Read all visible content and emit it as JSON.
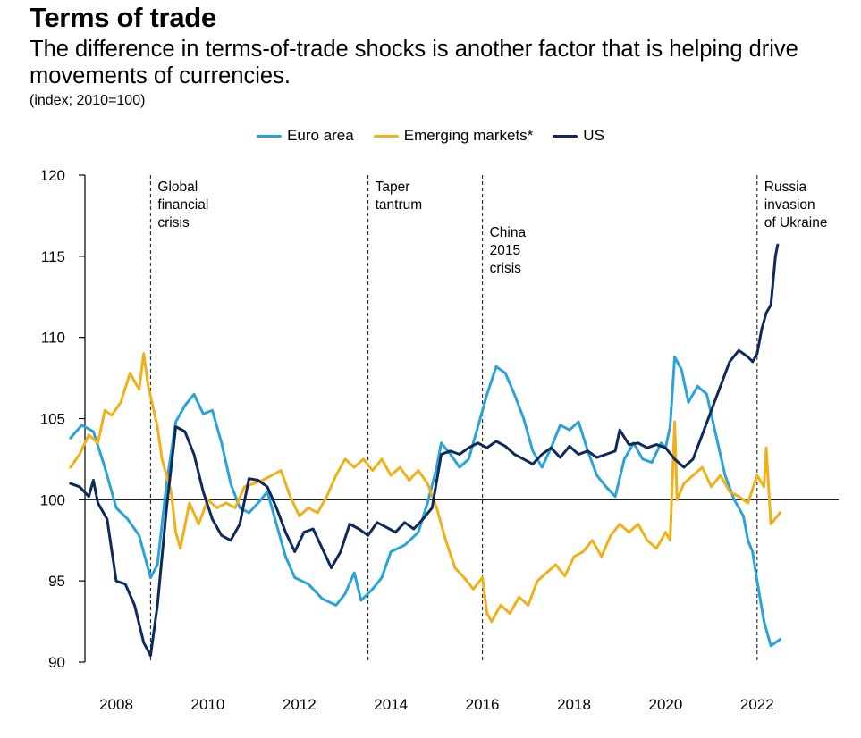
{
  "header": {
    "title": "Terms of trade",
    "subtitle": "The difference in terms-of-trade shocks is another factor that is helping drive movements of currencies.",
    "units": "(index; 2010=100)"
  },
  "colors": {
    "euro": "#2aa3d8",
    "em": "#f0b018",
    "us": "#0e2a5c"
  },
  "chart_data": {
    "type": "line",
    "ylim": [
      90,
      120
    ],
    "yticks": [
      90,
      95,
      100,
      105,
      110,
      115,
      120
    ],
    "xlim": [
      2007.0,
      2022.75
    ],
    "xticks": [
      2008,
      2010,
      2012,
      2014,
      2016,
      2018,
      2020,
      2022
    ],
    "reference_line": 100,
    "series": [
      {
        "name": "Euro area",
        "color": "#2aa3d8",
        "points": [
          [
            2007.0,
            103.8
          ],
          [
            2007.25,
            104.6
          ],
          [
            2007.5,
            104.2
          ],
          [
            2007.75,
            102.0
          ],
          [
            2008.0,
            99.5
          ],
          [
            2008.25,
            98.8
          ],
          [
            2008.5,
            97.8
          ],
          [
            2008.75,
            95.2
          ],
          [
            2008.9,
            96.0
          ],
          [
            2009.1,
            101.0
          ],
          [
            2009.3,
            104.8
          ],
          [
            2009.5,
            105.8
          ],
          [
            2009.7,
            106.5
          ],
          [
            2009.9,
            105.3
          ],
          [
            2010.1,
            105.5
          ],
          [
            2010.3,
            103.5
          ],
          [
            2010.5,
            101.0
          ],
          [
            2010.7,
            99.5
          ],
          [
            2010.9,
            99.2
          ],
          [
            2011.1,
            99.8
          ],
          [
            2011.3,
            100.5
          ],
          [
            2011.5,
            98.5
          ],
          [
            2011.7,
            96.5
          ],
          [
            2011.9,
            95.2
          ],
          [
            2012.2,
            94.8
          ],
          [
            2012.5,
            93.9
          ],
          [
            2012.8,
            93.5
          ],
          [
            2013.0,
            94.2
          ],
          [
            2013.2,
            95.5
          ],
          [
            2013.35,
            93.8
          ],
          [
            2013.6,
            94.5
          ],
          [
            2013.8,
            95.2
          ],
          [
            2014.0,
            96.8
          ],
          [
            2014.3,
            97.2
          ],
          [
            2014.6,
            98.0
          ],
          [
            2014.8,
            99.8
          ],
          [
            2015.0,
            102.0
          ],
          [
            2015.1,
            103.5
          ],
          [
            2015.3,
            102.8
          ],
          [
            2015.5,
            102.0
          ],
          [
            2015.7,
            102.5
          ],
          [
            2015.9,
            104.5
          ],
          [
            2016.1,
            106.5
          ],
          [
            2016.3,
            108.2
          ],
          [
            2016.5,
            107.8
          ],
          [
            2016.7,
            106.5
          ],
          [
            2016.9,
            105.0
          ],
          [
            2017.1,
            103.0
          ],
          [
            2017.3,
            102.0
          ],
          [
            2017.5,
            103.2
          ],
          [
            2017.7,
            104.6
          ],
          [
            2017.9,
            104.3
          ],
          [
            2018.1,
            104.8
          ],
          [
            2018.3,
            103.0
          ],
          [
            2018.5,
            101.5
          ],
          [
            2018.7,
            100.8
          ],
          [
            2018.9,
            100.2
          ],
          [
            2019.1,
            102.5
          ],
          [
            2019.3,
            103.5
          ],
          [
            2019.5,
            102.5
          ],
          [
            2019.7,
            102.3
          ],
          [
            2019.9,
            103.5
          ],
          [
            2020.0,
            103.2
          ],
          [
            2020.1,
            104.5
          ],
          [
            2020.2,
            108.8
          ],
          [
            2020.35,
            108.0
          ],
          [
            2020.5,
            106.0
          ],
          [
            2020.7,
            107.0
          ],
          [
            2020.9,
            106.5
          ],
          [
            2021.1,
            104.0
          ],
          [
            2021.3,
            101.5
          ],
          [
            2021.5,
            100.0
          ],
          [
            2021.7,
            99.0
          ],
          [
            2021.8,
            97.5
          ],
          [
            2021.9,
            96.8
          ],
          [
            2022.0,
            95.0
          ],
          [
            2022.15,
            92.5
          ],
          [
            2022.3,
            91.0
          ],
          [
            2022.5,
            91.4
          ]
        ]
      },
      {
        "name": "Emerging markets*",
        "color": "#f0b018",
        "points": [
          [
            2007.0,
            102.0
          ],
          [
            2007.2,
            102.8
          ],
          [
            2007.4,
            104.0
          ],
          [
            2007.6,
            103.5
          ],
          [
            2007.75,
            105.5
          ],
          [
            2007.9,
            105.2
          ],
          [
            2008.1,
            106.0
          ],
          [
            2008.3,
            107.8
          ],
          [
            2008.5,
            106.8
          ],
          [
            2008.6,
            109.0
          ],
          [
            2008.7,
            107.0
          ],
          [
            2008.9,
            104.5
          ],
          [
            2009.0,
            102.5
          ],
          [
            2009.2,
            100.5
          ],
          [
            2009.3,
            98.0
          ],
          [
            2009.4,
            97.0
          ],
          [
            2009.6,
            99.8
          ],
          [
            2009.8,
            98.5
          ],
          [
            2010.0,
            100.0
          ],
          [
            2010.2,
            99.5
          ],
          [
            2010.4,
            99.8
          ],
          [
            2010.6,
            99.5
          ],
          [
            2010.8,
            100.8
          ],
          [
            2011.0,
            101.0
          ],
          [
            2011.2,
            101.2
          ],
          [
            2011.4,
            101.5
          ],
          [
            2011.6,
            101.8
          ],
          [
            2011.8,
            100.2
          ],
          [
            2012.0,
            99.0
          ],
          [
            2012.2,
            99.5
          ],
          [
            2012.4,
            99.2
          ],
          [
            2012.6,
            100.2
          ],
          [
            2012.8,
            101.5
          ],
          [
            2013.0,
            102.5
          ],
          [
            2013.2,
            102.0
          ],
          [
            2013.4,
            102.5
          ],
          [
            2013.6,
            101.8
          ],
          [
            2013.8,
            102.5
          ],
          [
            2014.0,
            101.5
          ],
          [
            2014.2,
            102.0
          ],
          [
            2014.4,
            101.2
          ],
          [
            2014.6,
            101.8
          ],
          [
            2014.8,
            101.0
          ],
          [
            2015.0,
            99.5
          ],
          [
            2015.2,
            97.5
          ],
          [
            2015.4,
            95.8
          ],
          [
            2015.6,
            95.2
          ],
          [
            2015.8,
            94.5
          ],
          [
            2016.0,
            95.2
          ],
          [
            2016.1,
            93.0
          ],
          [
            2016.2,
            92.5
          ],
          [
            2016.4,
            93.5
          ],
          [
            2016.6,
            93.0
          ],
          [
            2016.8,
            94.0
          ],
          [
            2017.0,
            93.5
          ],
          [
            2017.2,
            95.0
          ],
          [
            2017.4,
            95.5
          ],
          [
            2017.6,
            96.0
          ],
          [
            2017.8,
            95.3
          ],
          [
            2018.0,
            96.5
          ],
          [
            2018.2,
            96.8
          ],
          [
            2018.4,
            97.5
          ],
          [
            2018.6,
            96.5
          ],
          [
            2018.8,
            97.8
          ],
          [
            2019.0,
            98.5
          ],
          [
            2019.2,
            98.0
          ],
          [
            2019.4,
            98.5
          ],
          [
            2019.6,
            97.5
          ],
          [
            2019.8,
            97.0
          ],
          [
            2020.0,
            98.0
          ],
          [
            2020.1,
            97.5
          ],
          [
            2020.2,
            104.8
          ],
          [
            2020.25,
            100.0
          ],
          [
            2020.4,
            101.0
          ],
          [
            2020.6,
            101.5
          ],
          [
            2020.8,
            102.0
          ],
          [
            2021.0,
            100.8
          ],
          [
            2021.2,
            101.5
          ],
          [
            2021.4,
            100.5
          ],
          [
            2021.6,
            100.2
          ],
          [
            2021.8,
            99.8
          ],
          [
            2022.0,
            101.5
          ],
          [
            2022.15,
            100.8
          ],
          [
            2022.2,
            103.2
          ],
          [
            2022.3,
            98.5
          ],
          [
            2022.5,
            99.2
          ]
        ]
      },
      {
        "name": "US",
        "color": "#0e2a5c",
        "points": [
          [
            2007.0,
            101.0
          ],
          [
            2007.2,
            100.8
          ],
          [
            2007.4,
            100.2
          ],
          [
            2007.5,
            101.2
          ],
          [
            2007.6,
            99.8
          ],
          [
            2007.8,
            98.8
          ],
          [
            2008.0,
            95.0
          ],
          [
            2008.2,
            94.8
          ],
          [
            2008.4,
            93.5
          ],
          [
            2008.6,
            91.2
          ],
          [
            2008.75,
            90.4
          ],
          [
            2008.9,
            93.5
          ],
          [
            2009.1,
            99.5
          ],
          [
            2009.3,
            104.5
          ],
          [
            2009.5,
            104.2
          ],
          [
            2009.7,
            102.8
          ],
          [
            2009.9,
            100.5
          ],
          [
            2010.1,
            98.8
          ],
          [
            2010.3,
            97.8
          ],
          [
            2010.5,
            97.5
          ],
          [
            2010.7,
            98.5
          ],
          [
            2010.9,
            101.3
          ],
          [
            2011.1,
            101.2
          ],
          [
            2011.3,
            100.8
          ],
          [
            2011.5,
            99.5
          ],
          [
            2011.7,
            98.0
          ],
          [
            2011.9,
            96.8
          ],
          [
            2012.1,
            98.0
          ],
          [
            2012.3,
            98.2
          ],
          [
            2012.5,
            97.0
          ],
          [
            2012.7,
            95.8
          ],
          [
            2012.9,
            96.8
          ],
          [
            2013.1,
            98.5
          ],
          [
            2013.3,
            98.2
          ],
          [
            2013.5,
            97.8
          ],
          [
            2013.7,
            98.6
          ],
          [
            2013.9,
            98.3
          ],
          [
            2014.1,
            98.0
          ],
          [
            2014.3,
            98.6
          ],
          [
            2014.5,
            98.2
          ],
          [
            2014.7,
            98.8
          ],
          [
            2014.9,
            99.5
          ],
          [
            2015.1,
            102.8
          ],
          [
            2015.3,
            103.0
          ],
          [
            2015.5,
            102.8
          ],
          [
            2015.7,
            103.2
          ],
          [
            2015.9,
            103.5
          ],
          [
            2016.1,
            103.2
          ],
          [
            2016.3,
            103.6
          ],
          [
            2016.5,
            103.3
          ],
          [
            2016.7,
            102.8
          ],
          [
            2016.9,
            102.5
          ],
          [
            2017.1,
            102.2
          ],
          [
            2017.3,
            102.8
          ],
          [
            2017.5,
            103.2
          ],
          [
            2017.7,
            102.6
          ],
          [
            2017.9,
            103.3
          ],
          [
            2018.1,
            102.8
          ],
          [
            2018.3,
            103.0
          ],
          [
            2018.5,
            102.6
          ],
          [
            2018.7,
            102.8
          ],
          [
            2018.9,
            103.0
          ],
          [
            2019.0,
            104.3
          ],
          [
            2019.2,
            103.4
          ],
          [
            2019.4,
            103.5
          ],
          [
            2019.6,
            103.2
          ],
          [
            2019.8,
            103.4
          ],
          [
            2020.0,
            103.2
          ],
          [
            2020.2,
            102.5
          ],
          [
            2020.4,
            102.0
          ],
          [
            2020.6,
            102.5
          ],
          [
            2020.8,
            104.0
          ],
          [
            2021.0,
            105.5
          ],
          [
            2021.2,
            107.0
          ],
          [
            2021.4,
            108.5
          ],
          [
            2021.6,
            109.2
          ],
          [
            2021.8,
            108.8
          ],
          [
            2021.9,
            108.5
          ],
          [
            2022.0,
            109.0
          ],
          [
            2022.1,
            110.5
          ],
          [
            2022.2,
            111.5
          ],
          [
            2022.3,
            112.0
          ],
          [
            2022.4,
            115.0
          ],
          [
            2022.45,
            115.7
          ]
        ]
      }
    ],
    "annotations": [
      {
        "x": 2008.75,
        "lines": [
          "Global",
          "financial",
          "crisis"
        ]
      },
      {
        "x": 2013.5,
        "lines": [
          "Taper",
          "tantrum"
        ]
      },
      {
        "x": 2016.0,
        "lines": [
          "China",
          "2015",
          "crisis"
        ]
      },
      {
        "x": 2022.0,
        "lines": [
          "Russia",
          "invasion",
          "of Ukraine"
        ]
      }
    ]
  }
}
